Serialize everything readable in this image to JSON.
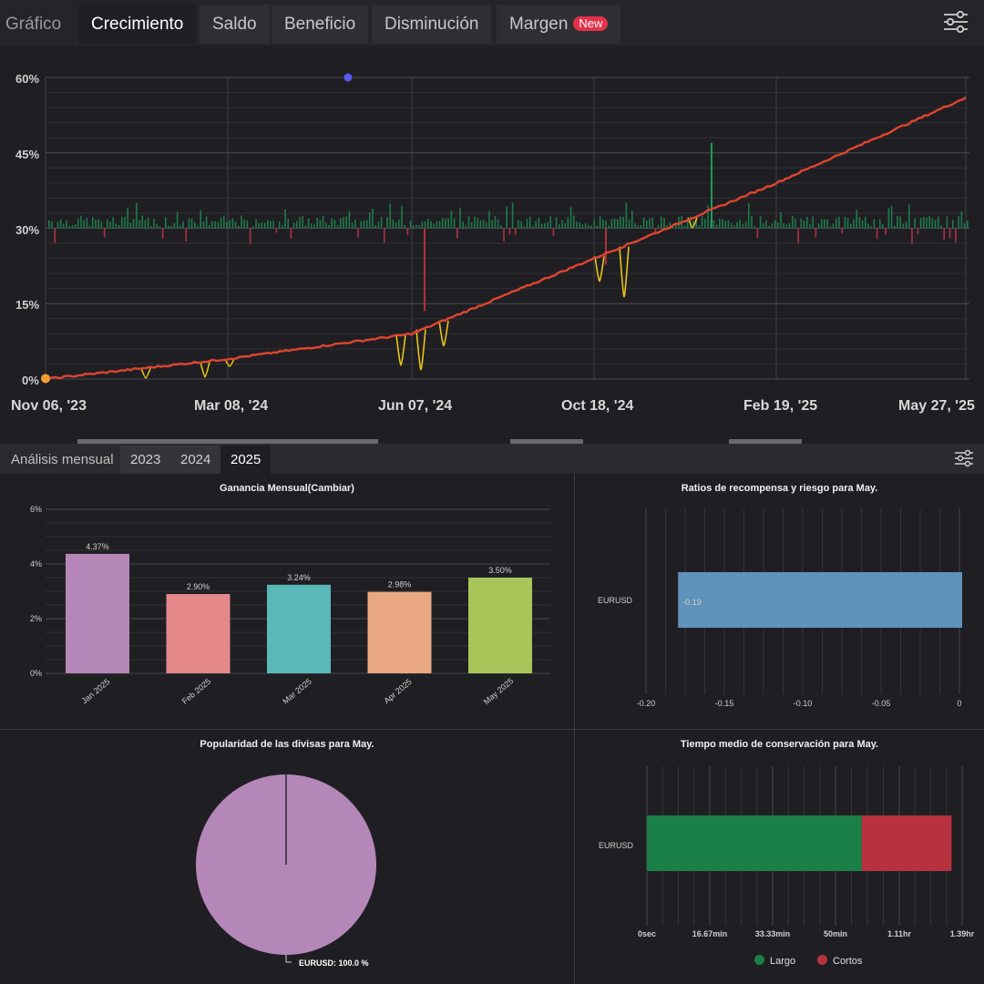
{
  "tabs": [
    {
      "label": "Gráfico",
      "state": "plain"
    },
    {
      "label": "Crecimiento",
      "state": "active"
    },
    {
      "label": "Saldo",
      "state": "normal"
    },
    {
      "label": "Beneficio",
      "state": "normal"
    },
    {
      "label": "Disminución",
      "state": "normal"
    },
    {
      "label": "Margen",
      "state": "normal",
      "badge": "New"
    }
  ],
  "growth": {
    "y_ticks": [
      "60%",
      "45%",
      "30%",
      "15%",
      "0%"
    ],
    "x_ticks": [
      "Nov 06, '23",
      "Mar 08, '24",
      "Jun 07, '24",
      "Oct 18, '24",
      "Feb 19, '25",
      "May 27, '25"
    ]
  },
  "monthly": {
    "label": "Análisis mensual",
    "years": [
      "2023",
      "2024",
      "2025"
    ],
    "active_year": "2025"
  },
  "chart_data": [
    {
      "type": "line",
      "y_ticks": [
        "0%",
        "15%",
        "30%",
        "45%",
        "60%"
      ],
      "ylim": [
        0,
        60
      ],
      "x_ticks": [
        "Nov 06, '23",
        "Mar 08, '24",
        "Jun 07, '24",
        "Oct 18, '24",
        "Feb 19, '25",
        "May 27, '25"
      ],
      "series": [
        {
          "color": "#e0452f",
          "x": [
            "Nov 06, '23",
            "Mar 08, '24",
            "Jun 07, '24",
            "Oct 18, '24",
            "Feb 19, '25",
            "May 27, '25"
          ],
          "values": [
            0,
            4,
            9,
            24,
            39,
            56
          ]
        }
      ]
    },
    {
      "type": "bar",
      "title": "Ganancia Mensual(Cambiar)",
      "categories": [
        "Jan 2025",
        "Feb 2025",
        "Mar 2025",
        "Apr 2025",
        "May 2025"
      ],
      "values": [
        4.37,
        2.9,
        3.24,
        2.98,
        3.5
      ],
      "labels": [
        "4.37%",
        "2.90%",
        "3.24%",
        "2.98%",
        "3.50%"
      ],
      "colors": [
        "#b586b8",
        "#e4888a",
        "#5bb8b8",
        "#e9a882",
        "#a8c55a"
      ],
      "y_ticks": [
        "0%",
        "2%",
        "4%",
        "6%"
      ],
      "ylim": [
        0,
        6
      ]
    },
    {
      "type": "bar",
      "orientation": "horizontal",
      "title": "Ratios de recompensa y riesgo para May.",
      "categories": [
        "EURUSD"
      ],
      "values": [
        -0.19
      ],
      "labels": [
        "-0.19"
      ],
      "color": "#5f93bb",
      "x_ticks": [
        "-0.20",
        "-0.15",
        "-0.10",
        "-0.05",
        "0"
      ],
      "xlim": [
        -0.2,
        0
      ]
    },
    {
      "type": "pie",
      "title": "Popularidad de las divisas para May.",
      "slices": [
        {
          "label": "EURUSD: 100.0 %",
          "value": 100,
          "color": "#b586b8"
        }
      ]
    },
    {
      "type": "bar",
      "orientation": "horizontal",
      "stacked": true,
      "title": "Tiempo medio de conservación para May.",
      "categories": [
        "EURUSD"
      ],
      "series": [
        {
          "name": "Largo",
          "values": [
            58
          ],
          "color": "#1b8048"
        },
        {
          "name": "Cortos",
          "values": [
            24
          ],
          "color": "#b8323e"
        }
      ],
      "x_ticks": [
        "0sec",
        "16.67min",
        "33.33min",
        "50min",
        "1.11hr",
        "1.39hr"
      ],
      "legend": "bottom"
    }
  ]
}
